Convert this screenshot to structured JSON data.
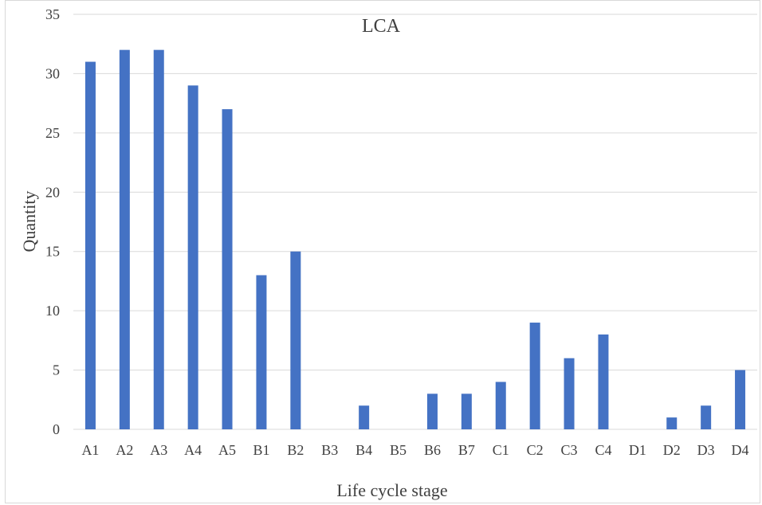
{
  "chart_data": {
    "type": "bar",
    "title": "LCA",
    "xlabel": "Life cycle stage",
    "ylabel": "Quantity",
    "categories": [
      "A1",
      "A2",
      "A3",
      "A4",
      "A5",
      "B1",
      "B2",
      "B3",
      "B4",
      "B5",
      "B6",
      "B7",
      "C1",
      "C2",
      "C3",
      "C4",
      "D1",
      "D2",
      "D3",
      "D4"
    ],
    "values": [
      31,
      32,
      32,
      29,
      27,
      13,
      15,
      0,
      2,
      0,
      3,
      3,
      4,
      9,
      6,
      8,
      0,
      1,
      2,
      5
    ],
    "ylim": [
      0,
      35
    ],
    "yticks": [
      0,
      5,
      10,
      15,
      20,
      25,
      30,
      35
    ],
    "grid": true,
    "legend": "none",
    "bar_color": "#4472c4",
    "grid_color": "#d9d9d9"
  }
}
